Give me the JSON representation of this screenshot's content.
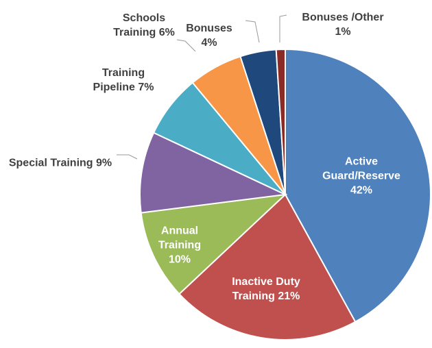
{
  "chart_data": {
    "type": "pie",
    "categories": [
      "Active Guard/Reserve",
      "Inactive Duty Training",
      "Annual Training",
      "Special Training",
      "Training Pipeline",
      "Schools Training",
      "Bonuses",
      "Bonuses /Other"
    ],
    "values": [
      42,
      21,
      10,
      9,
      7,
      6,
      4,
      1
    ],
    "value_labels": [
      "42%",
      "21%",
      "10%",
      "9%",
      "7%",
      "6%",
      "4%",
      "1%"
    ],
    "colors": [
      "#4f81bd",
      "#c0504d",
      "#9bbb59",
      "#8064a2",
      "#4bacc6",
      "#f79646",
      "#1f497d",
      "#8b2b28"
    ]
  }
}
